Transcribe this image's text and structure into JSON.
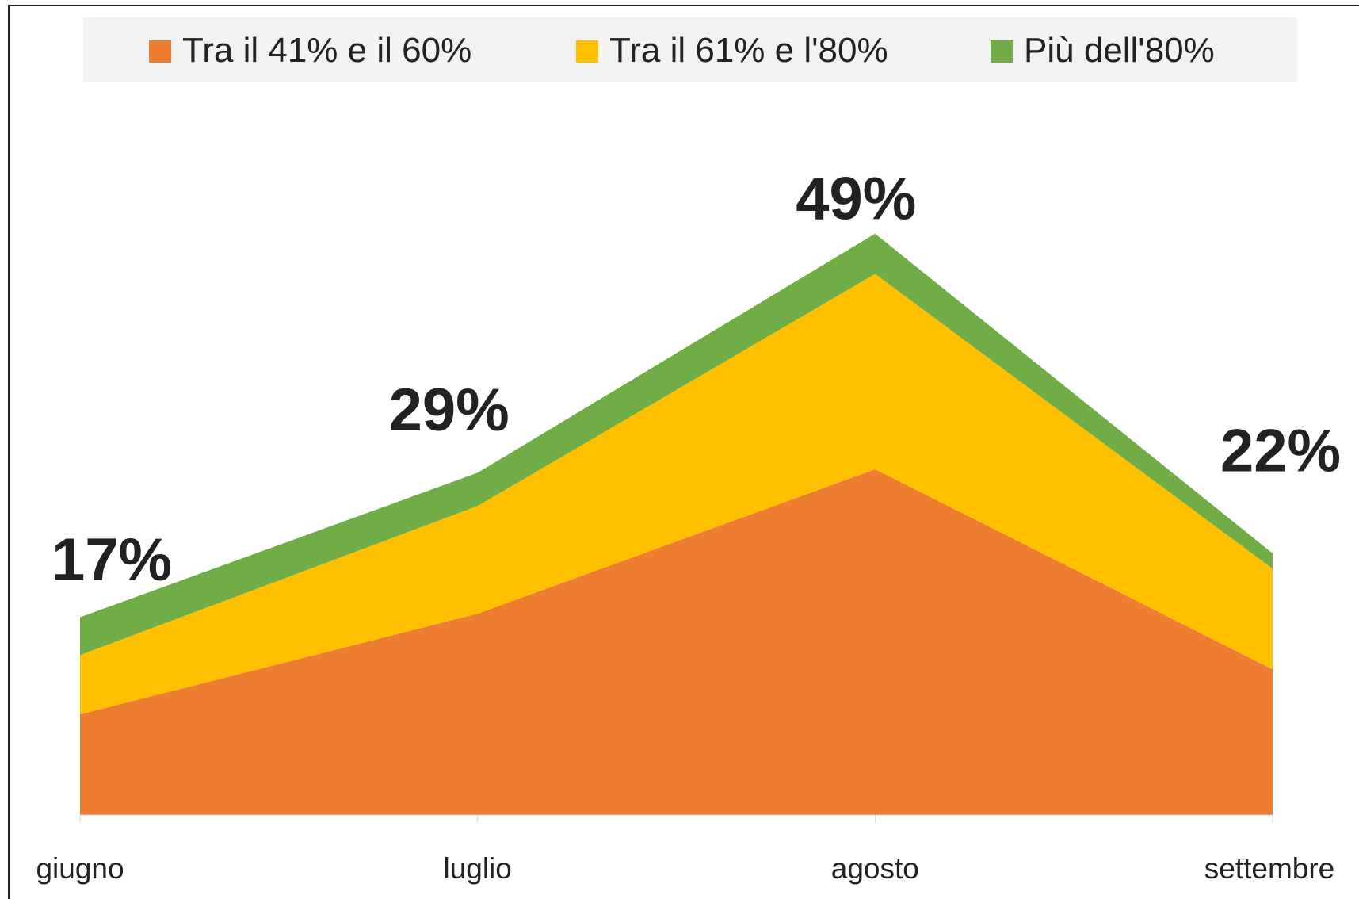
{
  "chart_data": {
    "type": "stacked_area",
    "categories": [
      "giugno",
      "luglio",
      "agosto",
      "settembre"
    ],
    "series": [
      {
        "name": "Tra il 41% e il 60%",
        "color": "#ed7d31",
        "values": [
          8.5,
          17,
          29.2,
          12.3
        ]
      },
      {
        "name": "Tra il 61% e l'80%",
        "color": "#ffc000",
        "values": [
          5,
          9.1,
          16.5,
          8.5
        ]
      },
      {
        "name": "Più dell'80%",
        "color": "#70ad47",
        "values": [
          3.2,
          2.8,
          3.4,
          1.3
        ]
      }
    ],
    "totals": [
      17,
      29,
      49,
      22
    ],
    "total_labels": [
      "17%",
      "29%",
      "49%",
      "22%"
    ],
    "ylim": [
      0,
      60
    ],
    "legend": "top"
  }
}
